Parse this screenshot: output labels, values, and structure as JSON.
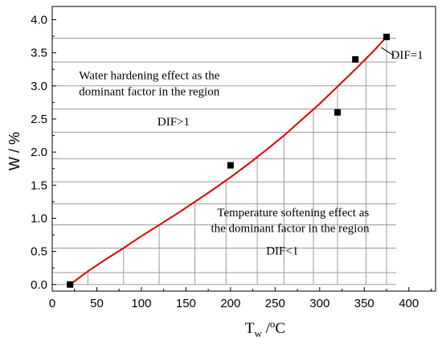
{
  "chart_data": {
    "type": "scatter",
    "xlabel": {
      "base": "T",
      "sub": "w",
      "sep": " /",
      "sup": "o",
      "unit": "C"
    },
    "ylabel": "W / %",
    "xlim": [
      0,
      430
    ],
    "ylim": [
      -0.1,
      4.2
    ],
    "xticks": [
      0,
      50,
      100,
      150,
      200,
      250,
      300,
      350,
      400
    ],
    "yticks": [
      0.0,
      0.5,
      1.0,
      1.5,
      2.0,
      2.5,
      3.0,
      3.5,
      4.0
    ],
    "xtick_labels": [
      "0",
      "50",
      "100",
      "150",
      "200",
      "250",
      "300",
      "350",
      "400"
    ],
    "ytick_labels": [
      "0.0",
      "0.5",
      "1.0",
      "1.5",
      "2.0",
      "2.5",
      "3.0",
      "3.5",
      "4.0"
    ],
    "scatter_points": {
      "x": [
        20,
        200,
        320,
        340,
        375
      ],
      "y": [
        0.0,
        1.8,
        2.6,
        3.4,
        3.74
      ],
      "color": "#000000"
    },
    "fit_curve": {
      "color": "#e00000",
      "x": [
        20,
        40,
        60,
        80,
        100,
        120,
        140,
        160,
        180,
        200,
        220,
        240,
        260,
        280,
        300,
        320,
        340,
        360,
        375
      ],
      "y": [
        0.0,
        0.2,
        0.38,
        0.55,
        0.73,
        0.9,
        1.07,
        1.25,
        1.43,
        1.62,
        1.82,
        2.03,
        2.25,
        2.49,
        2.73,
        2.99,
        3.25,
        3.52,
        3.74
      ]
    },
    "vertical_lines_x": [
      40,
      80,
      120,
      160,
      195,
      230,
      260,
      293,
      320,
      352,
      375
    ],
    "horizontal_lines_y": [
      0.18,
      0.55,
      0.9,
      1.22,
      1.55,
      1.9,
      2.3,
      2.65,
      3.0,
      3.36,
      3.72
    ],
    "annotations": [
      {
        "text": "Water hardening effect as the",
        "x": 30,
        "y": 3.1
      },
      {
        "text": "dominant factor in the region",
        "x": 30,
        "y": 2.86
      },
      {
        "text": "DIF>1",
        "x": 118,
        "y": 2.4
      },
      {
        "text": "Temperature softening effect as",
        "x": 185,
        "y": 1.03
      },
      {
        "text": "the dominant factor in the region",
        "x": 178,
        "y": 0.79
      },
      {
        "text": "DIF<1",
        "x": 240,
        "y": 0.45
      },
      {
        "text": "DIF=1",
        "x": 380,
        "y": 3.41
      }
    ],
    "grid": false
  }
}
